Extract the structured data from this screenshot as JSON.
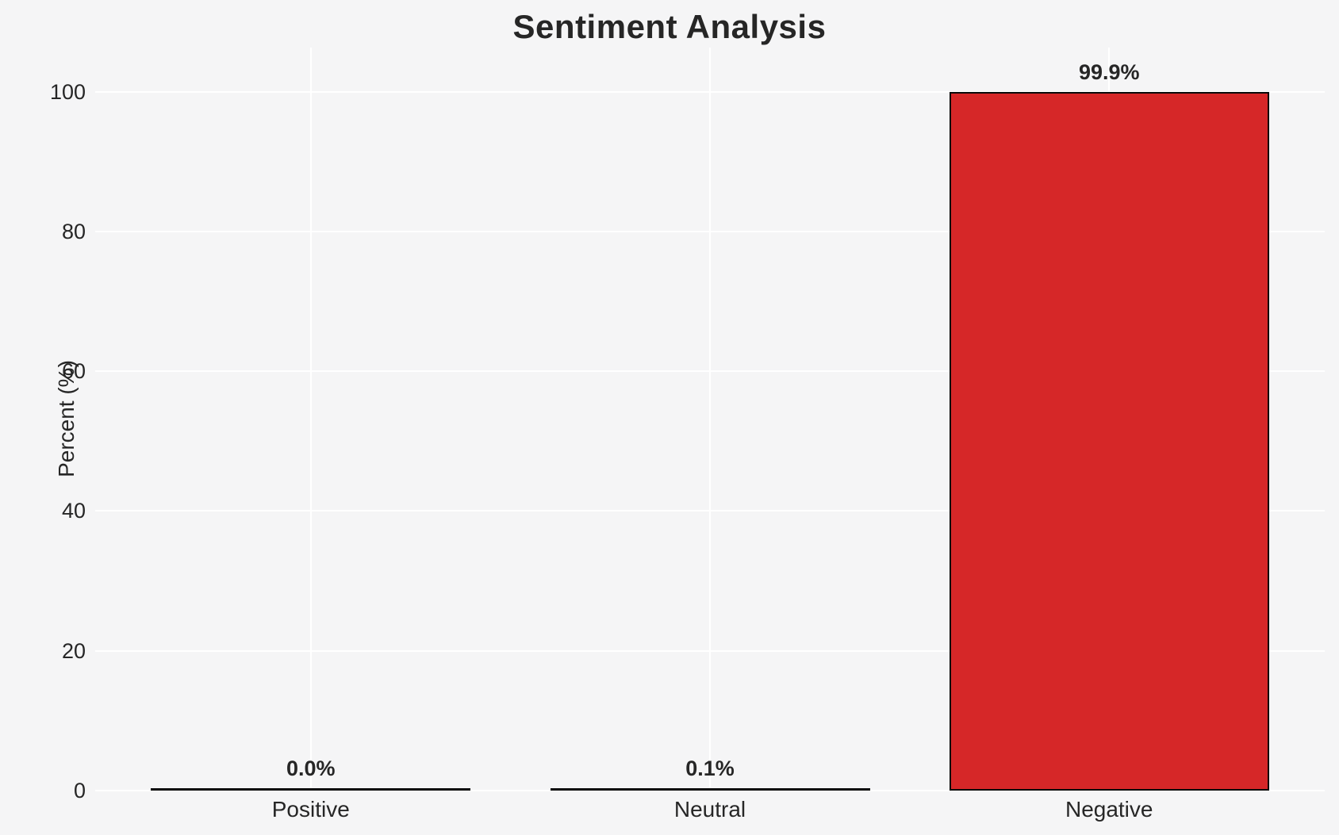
{
  "chart_data": {
    "type": "bar",
    "title": "Sentiment Analysis",
    "xlabel": "",
    "ylabel": "Percent (%)",
    "categories": [
      "Positive",
      "Neutral",
      "Negative"
    ],
    "values": [
      0.0,
      0.1,
      99.9
    ],
    "value_labels": [
      "0.0%",
      "0.1%",
      "99.9%"
    ],
    "yticks": [
      0,
      20,
      40,
      60,
      80,
      100
    ],
    "ylim": [
      0,
      106.3
    ],
    "grid": true,
    "legend_position": "none",
    "colors": {
      "bar_fill": "#d62728",
      "bar_edge": "#0a0a0a",
      "gridline": "#ffffff",
      "background": "#f5f5f6",
      "text": "#262626"
    }
  }
}
